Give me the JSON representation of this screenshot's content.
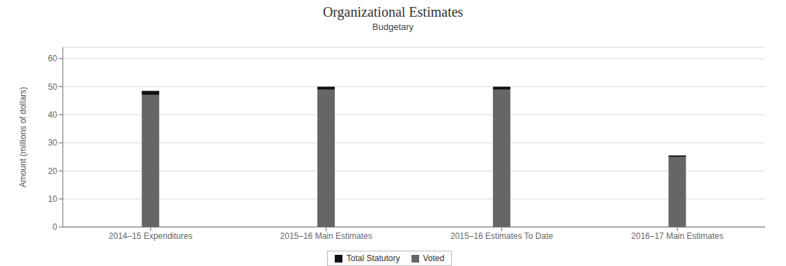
{
  "chart_data": {
    "type": "bar",
    "title": "Organizational Estimates",
    "subtitle": "Budgetary",
    "ylabel": "Amount (millions of dollars)",
    "categories": [
      "2014–15 Expenditures",
      "2015–16 Main Estimates",
      "2015–16 Estimates To Date",
      "2016–17 Main Estimates"
    ],
    "series": [
      {
        "name": "Voted",
        "color": "#666666",
        "values": [
          47.0,
          48.9,
          48.9,
          24.9
        ]
      },
      {
        "name": "Total Statutory",
        "color": "#111111",
        "values": [
          1.5,
          1.1,
          1.1,
          0.6
        ]
      }
    ],
    "stacked": true,
    "ylim": [
      0,
      64
    ],
    "yticks": [
      0,
      10,
      20,
      30,
      40,
      50,
      60
    ],
    "grid": true,
    "legend": "bottom"
  }
}
